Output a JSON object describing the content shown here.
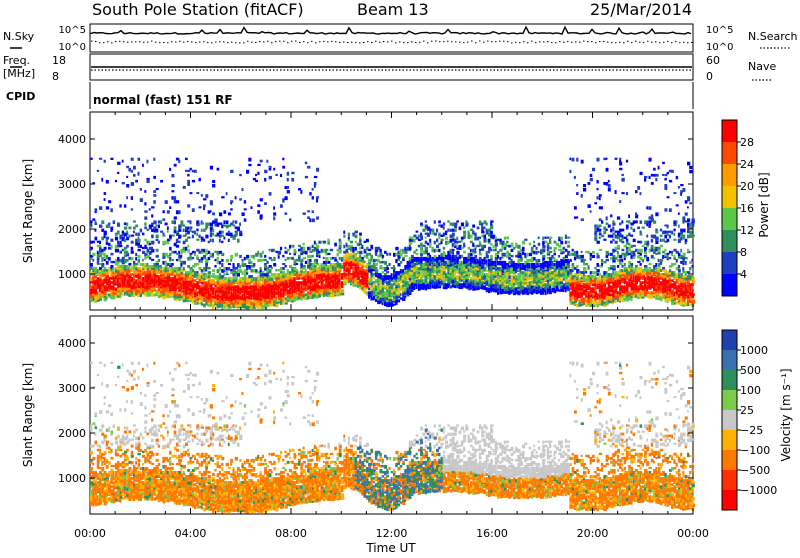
{
  "header": {
    "station": "South Pole Station (fitACF)",
    "beam": "Beam 13",
    "date": "25/Mar/2014"
  },
  "top_panels": {
    "nsky_label": "N.Sky",
    "nsky_ticks": [
      "10^5",
      "10^0"
    ],
    "nsearch_label": "N.Search",
    "nsearch_ticks": [
      "10^5",
      "10^0"
    ],
    "freq_label_1": "Freq.",
    "freq_label_2": "[MHz]",
    "freq_ticks": [
      "18",
      "8"
    ],
    "nave_label": "Nave",
    "nave_ticks": [
      "60",
      "0"
    ],
    "cpid_label": "CPID",
    "cpid_text": "normal (fast) 151 RF"
  },
  "chart_data": [
    {
      "type": "heatmap",
      "name": "power",
      "ylabel": "Slant Range [km]",
      "yticks": [
        1000,
        2000,
        3000,
        4000
      ],
      "ylim": [
        200,
        4600
      ],
      "colorbar_label": "Power [dB]",
      "colorbar_ticks": [
        "28",
        "24",
        "20",
        "16",
        "12",
        "8",
        "4"
      ],
      "colors": [
        "#ff0000",
        "#ff4a00",
        "#ff9a00",
        "#f2c200",
        "#5cc84a",
        "#2f8f5c",
        "#1e3fbf",
        "#0000ff"
      ],
      "xticks": [
        "00:00",
        "04:00",
        "08:00",
        "12:00",
        "16:00",
        "20:00",
        "00:00"
      ],
      "xlim_hours": [
        0,
        24
      ]
    },
    {
      "type": "heatmap",
      "name": "velocity",
      "ylabel": "Slant Range [km]",
      "yticks": [
        1000,
        2000,
        3000,
        4000
      ],
      "ylim": [
        200,
        4600
      ],
      "colorbar_label": "Velocity [m s⁻¹]",
      "colorbar_ticks": [
        "1000",
        "500",
        "100",
        "25",
        "−25",
        "−100",
        "−500",
        "−1000"
      ],
      "colors": [
        "#2040b0",
        "#3a6fb0",
        "#2f8f5c",
        "#7acc4a",
        "#c8c8c8",
        "#ffb000",
        "#ff7800",
        "#ff3000",
        "#ff0000"
      ],
      "xlabel": "Time UT",
      "xticks": [
        "00:00",
        "04:00",
        "08:00",
        "12:00",
        "16:00",
        "20:00",
        "00:00"
      ],
      "xlim_hours": [
        0,
        24
      ]
    }
  ]
}
